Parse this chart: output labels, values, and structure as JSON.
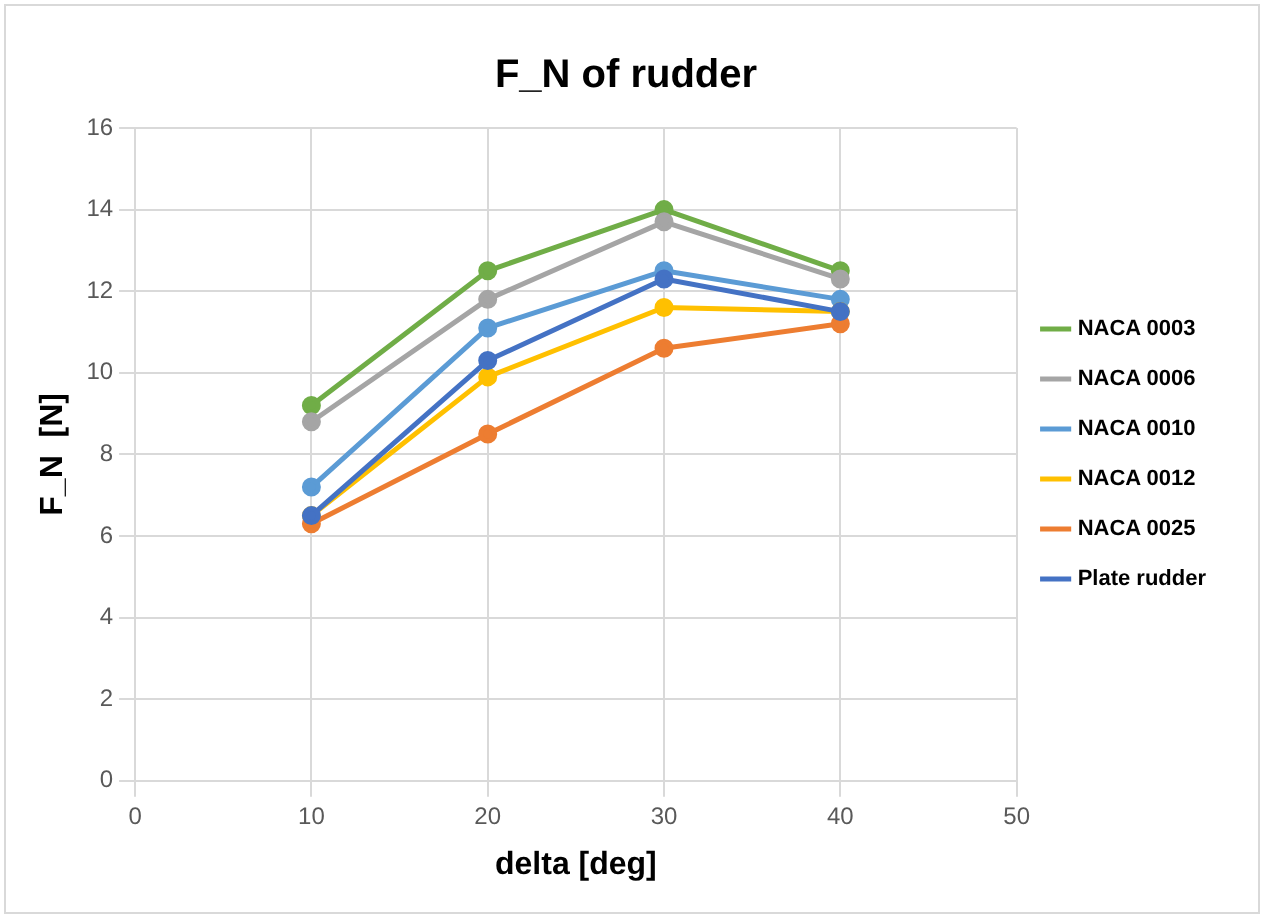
{
  "chart_data": {
    "type": "line",
    "title": "F_N of rudder",
    "xlabel": "delta [deg]",
    "ylabel": "F_N  [N]",
    "x": [
      10,
      20,
      30,
      40
    ],
    "xlim": [
      0,
      50
    ],
    "xticks": [
      0,
      10,
      20,
      30,
      40,
      50
    ],
    "ylim": [
      0,
      16
    ],
    "yticks": [
      0,
      2,
      4,
      6,
      8,
      10,
      12,
      14,
      16
    ],
    "grid": true,
    "legend": "right",
    "marker": "circle",
    "line_style": "solid",
    "series": [
      {
        "name": "NACA 0003",
        "color": "#70ad47",
        "values": [
          9.2,
          12.5,
          14.0,
          12.5
        ]
      },
      {
        "name": "NACA 0006",
        "color": "#a5a5a5",
        "values": [
          8.8,
          11.8,
          13.7,
          12.3
        ]
      },
      {
        "name": "NACA 0010",
        "color": "#5b9bd5",
        "values": [
          7.2,
          11.1,
          12.5,
          11.8
        ]
      },
      {
        "name": "NACA 0012",
        "color": "#ffc000",
        "values": [
          6.5,
          9.9,
          11.6,
          11.5
        ]
      },
      {
        "name": "NACA 0025",
        "color": "#ed7d31",
        "values": [
          6.3,
          8.5,
          10.6,
          11.2
        ]
      },
      {
        "name": "Plate rudder",
        "color": "#4472c4",
        "values": [
          6.5,
          10.3,
          12.3,
          11.5
        ]
      }
    ]
  }
}
